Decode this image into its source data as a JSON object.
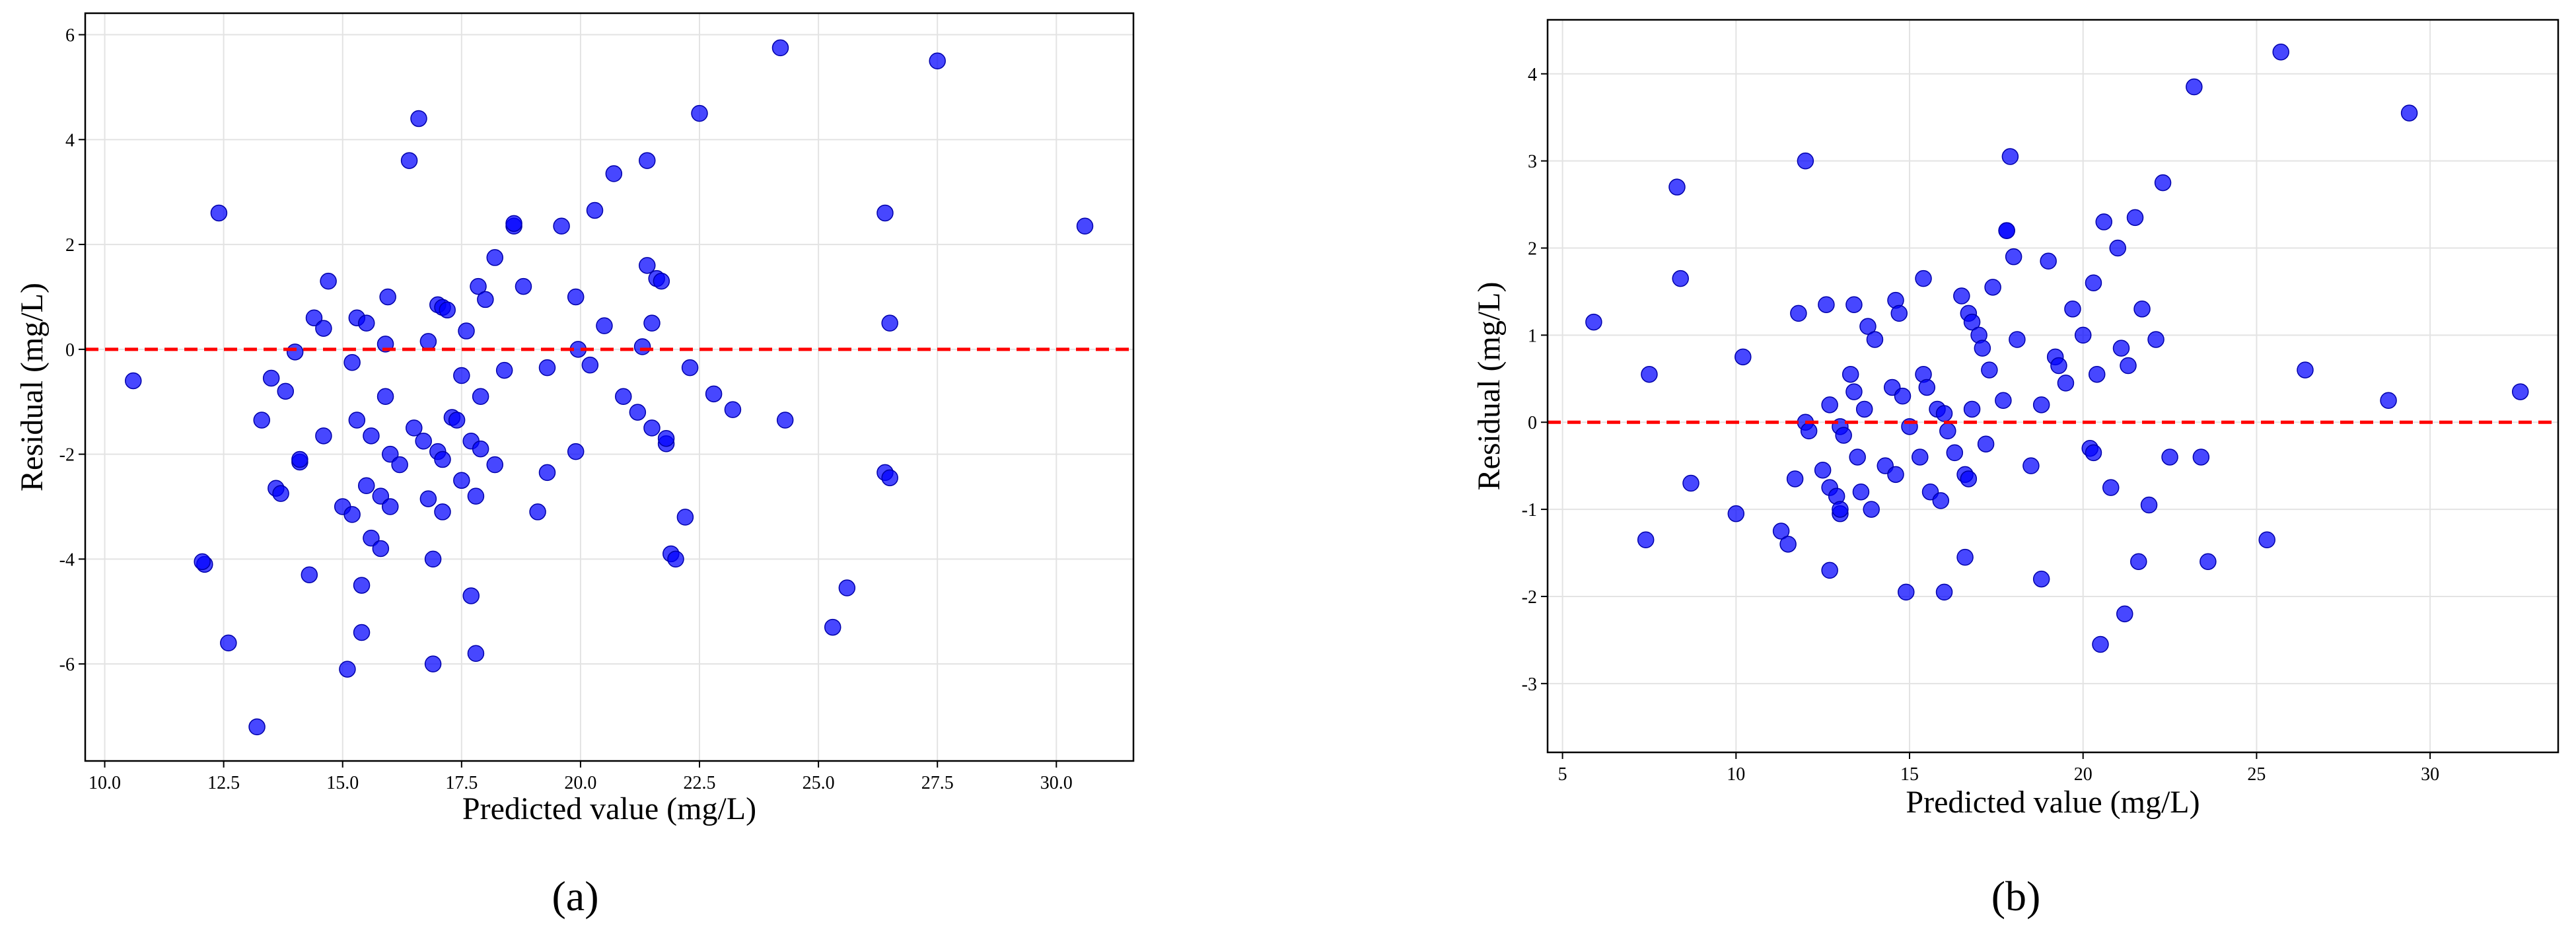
{
  "chart_data": [
    {
      "type": "scatter",
      "caption": "(a)",
      "xlabel": "Predicted value (mg/L)",
      "ylabel": "Residual (mg/L)",
      "color": "#0000ff",
      "grid": true,
      "reference_line": {
        "y": 0,
        "color": "#ff0000"
      },
      "xlim": [
        9.59,
        31.62
      ],
      "ylim": [
        -7.85,
        6.41
      ],
      "xticks": [
        {
          "value": 10,
          "label": "10.0"
        },
        {
          "value": 12.5,
          "label": "12.5"
        },
        {
          "value": 15,
          "label": "15.0"
        },
        {
          "value": 17.5,
          "label": "17.5"
        },
        {
          "value": 20,
          "label": "20.0"
        },
        {
          "value": 22.5,
          "label": "22.5"
        },
        {
          "value": 25,
          "label": "25.0"
        },
        {
          "value": 27.5,
          "label": "27.5"
        },
        {
          "value": 30,
          "label": "30.0"
        }
      ],
      "yticks": [
        -6,
        -4,
        -2,
        0,
        2,
        4,
        6
      ],
      "x": [
        10.6,
        12.1,
        12.05,
        12.4,
        12.6,
        13.2,
        13.3,
        13.5,
        13.6,
        13.7,
        13.8,
        14.0,
        14.1,
        14.1,
        14.3,
        14.4,
        14.6,
        14.6,
        14.7,
        15.0,
        15.1,
        15.2,
        15.2,
        15.3,
        15.3,
        15.4,
        15.4,
        15.5,
        15.5,
        15.6,
        15.6,
        15.8,
        15.8,
        15.9,
        15.9,
        15.95,
        16.0,
        16.0,
        16.2,
        16.4,
        16.5,
        16.6,
        16.7,
        16.8,
        16.8,
        16.9,
        16.9,
        17.0,
        17.0,
        17.1,
        17.1,
        17.1,
        17.2,
        17.3,
        17.4,
        17.5,
        17.5,
        17.6,
        17.7,
        17.7,
        17.8,
        17.8,
        17.85,
        17.9,
        17.9,
        18.0,
        18.2,
        18.2,
        18.4,
        18.6,
        18.6,
        18.8,
        19.1,
        19.3,
        19.3,
        19.6,
        19.9,
        19.9,
        19.95,
        20.2,
        20.3,
        20.5,
        20.7,
        20.9,
        21.2,
        21.3,
        21.4,
        21.4,
        21.5,
        21.5,
        21.6,
        21.7,
        21.8,
        21.8,
        21.9,
        22.0,
        22.2,
        22.3,
        22.5,
        22.8,
        23.2,
        24.2,
        24.3,
        25.3,
        25.6,
        26.4,
        26.5,
        26.4,
        26.5,
        27.5,
        30.6
      ],
      "values": [
        -0.6,
        -4.1,
        -4.05,
        2.6,
        -5.6,
        -7.2,
        -1.35,
        -0.55,
        -2.65,
        -2.75,
        -0.8,
        -0.05,
        -2.15,
        -2.1,
        -4.3,
        0.6,
        0.4,
        -1.65,
        1.3,
        -3.0,
        -6.1,
        -3.15,
        -0.25,
        0.6,
        -1.35,
        -5.4,
        -4.5,
        0.5,
        -2.6,
        -3.6,
        -1.65,
        -3.8,
        -2.8,
        0.1,
        -0.9,
        1.0,
        -2.0,
        -3.0,
        -2.2,
        3.6,
        -1.5,
        4.4,
        -1.75,
        0.15,
        -2.85,
        -6.0,
        -4.0,
        -1.95,
        0.85,
        0.8,
        -3.1,
        -2.1,
        0.75,
        -1.3,
        -1.35,
        -0.5,
        -2.5,
        0.35,
        -4.7,
        -1.75,
        -5.8,
        -2.8,
        1.2,
        -1.9,
        -0.9,
        0.95,
        1.75,
        -2.2,
        -0.4,
        2.35,
        2.4,
        1.2,
        -3.1,
        -2.35,
        -0.35,
        2.35,
        -1.95,
        1.0,
        0.0,
        -0.3,
        2.65,
        0.45,
        3.35,
        -0.9,
        -1.2,
        0.05,
        3.6,
        1.6,
        -1.5,
        0.5,
        1.35,
        1.3,
        -1.8,
        -1.7,
        -3.9,
        -4.0,
        -3.2,
        -0.35,
        4.5,
        -0.85,
        -1.15,
        5.75,
        -1.35,
        -5.3,
        -4.55,
        -2.35,
        -2.45,
        2.6,
        0.5,
        5.5,
        2.35
      ]
    },
    {
      "type": "scatter",
      "caption": "(b)",
      "xlabel": "Predicted value (mg/L)",
      "ylabel": "Residual (mg/L)",
      "color": "#0000ff",
      "grid": true,
      "reference_line": {
        "y": 0,
        "color": "#ff0000"
      },
      "xlim": [
        4.57,
        33.69
      ],
      "ylim": [
        -3.79,
        4.62
      ],
      "xticks": [
        5,
        10,
        15,
        20,
        25,
        30
      ],
      "yticks": [
        -3,
        -2,
        -1,
        0,
        1,
        2,
        3,
        4
      ],
      "x": [
        5.9,
        7.4,
        7.5,
        8.3,
        8.4,
        8.7,
        10.0,
        10.2,
        11.3,
        11.5,
        11.7,
        11.8,
        12.0,
        12.0,
        12.1,
        12.5,
        12.6,
        12.7,
        12.7,
        12.7,
        12.9,
        13.0,
        13.0,
        13.0,
        13.1,
        13.3,
        13.4,
        13.4,
        13.5,
        13.6,
        13.7,
        13.8,
        13.9,
        14.0,
        14.3,
        14.5,
        14.6,
        14.6,
        14.7,
        14.8,
        14.9,
        15.0,
        15.3,
        15.4,
        15.4,
        15.5,
        15.6,
        15.8,
        15.9,
        16.0,
        16.0,
        16.1,
        16.3,
        16.5,
        16.6,
        16.6,
        16.7,
        16.7,
        16.8,
        16.8,
        17.0,
        17.1,
        17.2,
        17.3,
        17.4,
        17.7,
        17.8,
        17.8,
        17.9,
        18.0,
        18.1,
        18.5,
        18.8,
        18.8,
        19.0,
        19.2,
        19.3,
        19.5,
        19.7,
        20.0,
        20.2,
        20.3,
        20.3,
        20.4,
        20.5,
        20.6,
        20.8,
        21.0,
        21.1,
        21.2,
        21.3,
        21.5,
        21.6,
        21.7,
        21.9,
        22.1,
        22.3,
        22.5,
        23.2,
        23.4,
        23.6,
        25.3,
        25.7,
        26.4,
        28.8,
        29.4,
        32.6
      ],
      "values": [
        1.15,
        -1.35,
        0.55,
        2.7,
        1.65,
        -0.7,
        -1.05,
        0.75,
        -1.25,
        -1.4,
        -0.65,
        1.25,
        3.0,
        0.0,
        -0.1,
        -0.55,
        1.35,
        -1.7,
        -0.75,
        0.2,
        -0.85,
        -1.05,
        -1.0,
        -0.05,
        -0.15,
        0.55,
        1.35,
        0.35,
        -0.4,
        -0.8,
        0.15,
        1.1,
        -1.0,
        0.95,
        -0.5,
        0.4,
        1.4,
        -0.6,
        1.25,
        0.3,
        -1.95,
        -0.05,
        -0.4,
        1.65,
        0.55,
        0.4,
        -0.8,
        0.15,
        -0.9,
        -1.95,
        0.1,
        -0.1,
        -0.35,
        1.45,
        -0.6,
        -1.55,
        1.25,
        -0.65,
        1.15,
        0.15,
        1.0,
        0.85,
        -0.25,
        0.6,
        1.55,
        0.25,
        2.2,
        2.2,
        3.05,
        1.9,
        0.95,
        -0.5,
        0.2,
        -1.8,
        1.85,
        0.75,
        0.65,
        0.45,
        1.3,
        1.0,
        -0.3,
        -0.35,
        1.6,
        0.55,
        -2.55,
        2.3,
        -0.75,
        2.0,
        0.85,
        -2.2,
        0.65,
        2.35,
        -1.6,
        1.3,
        -0.95,
        0.95,
        2.75,
        -0.4,
        3.85,
        -0.4,
        -1.6,
        -1.35,
        4.25,
        0.6,
        0.25,
        3.55,
        0.35
      ]
    }
  ]
}
